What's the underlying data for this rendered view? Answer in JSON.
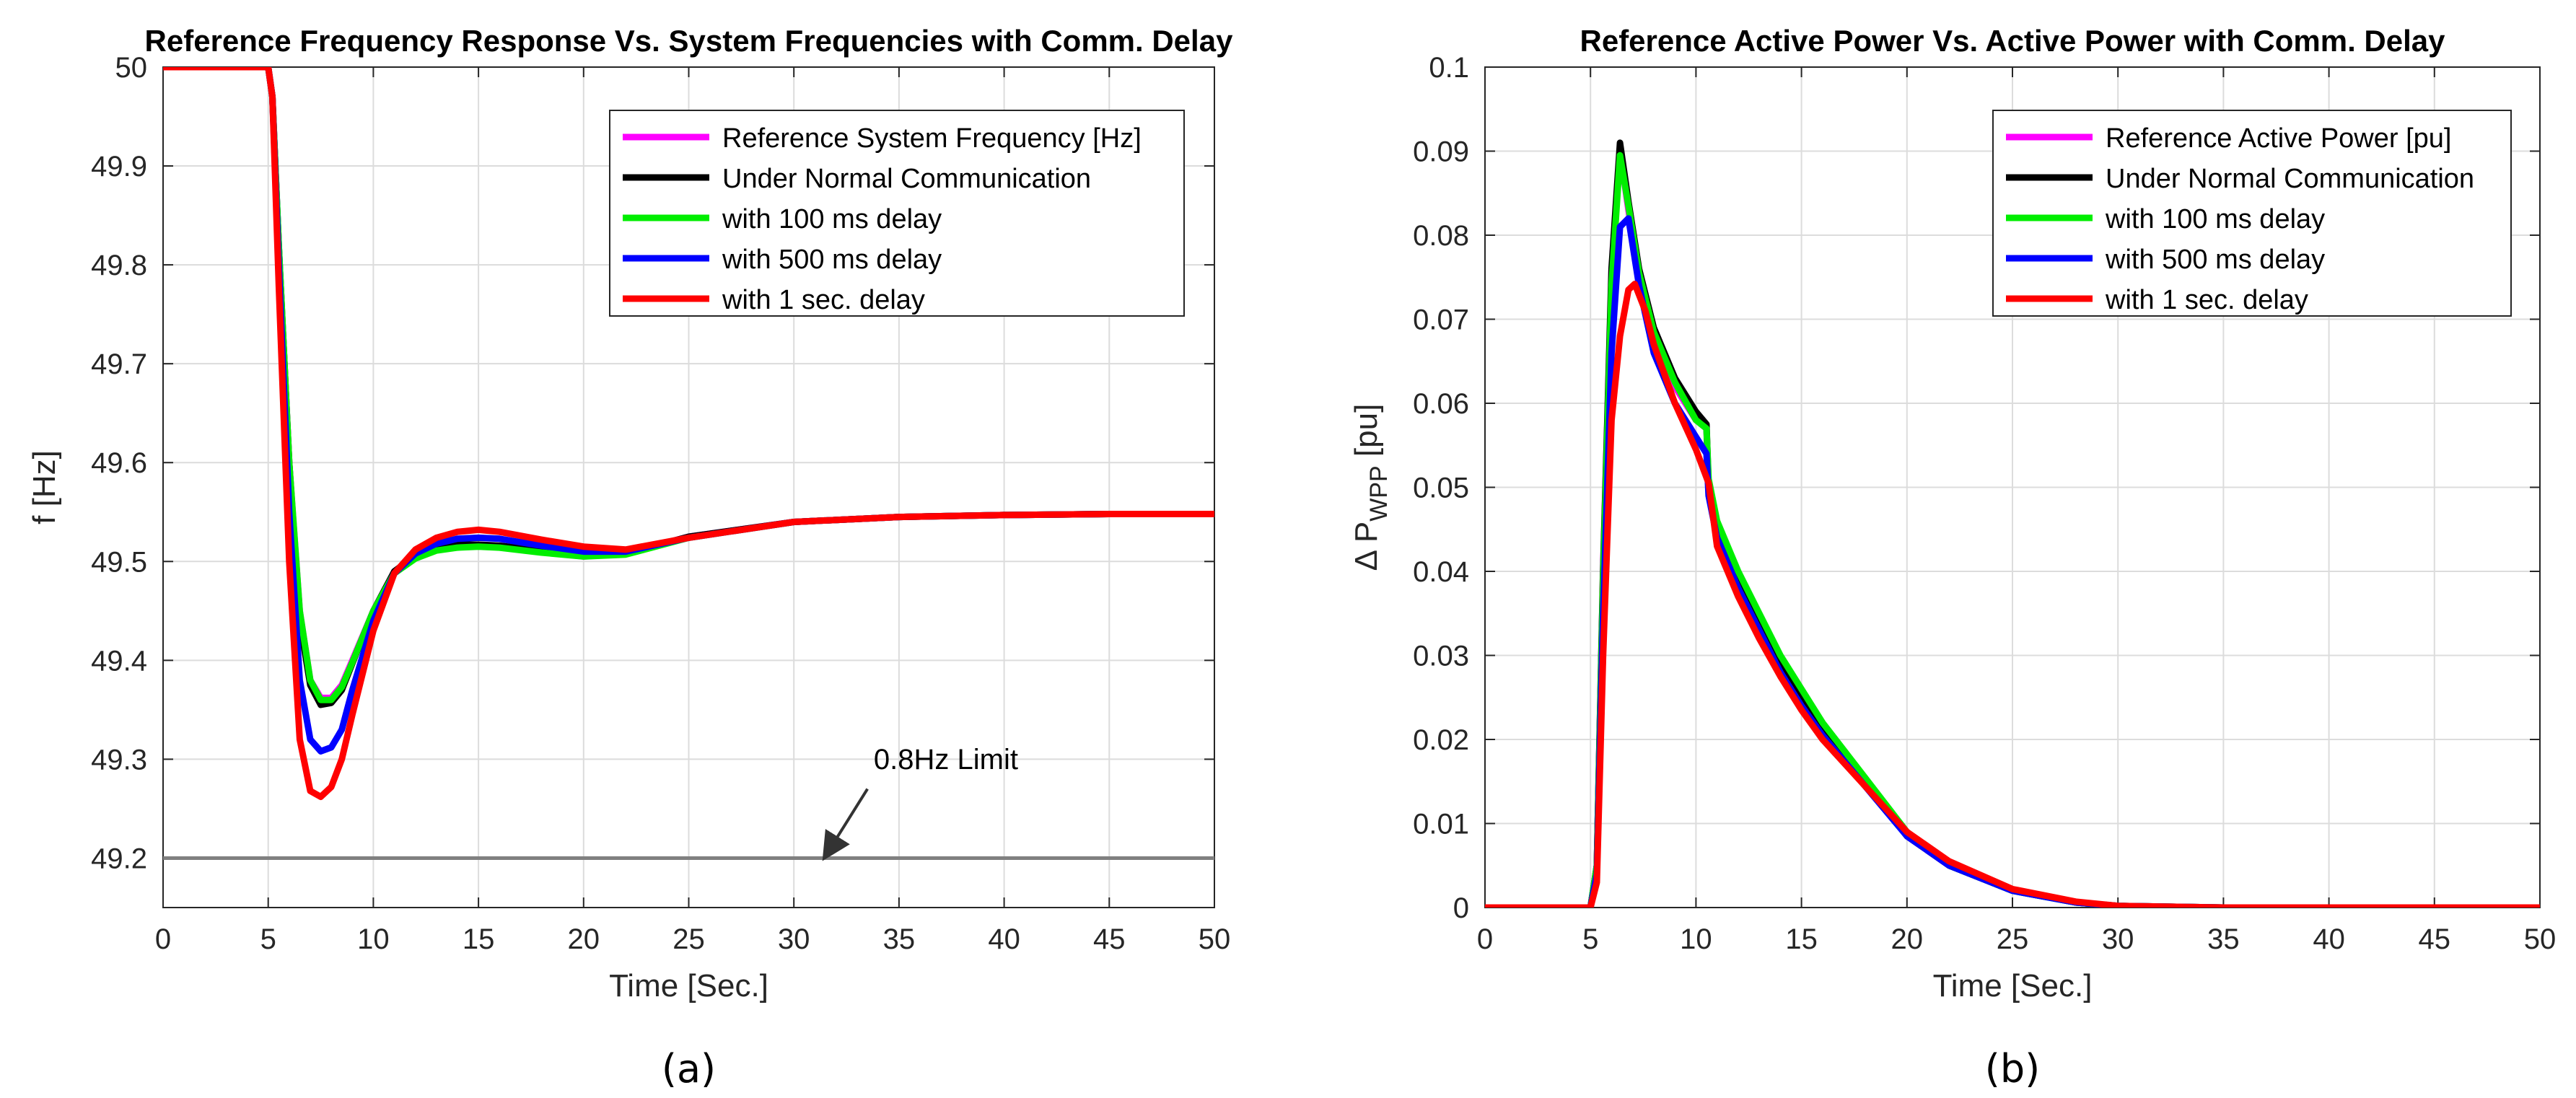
{
  "colors": {
    "reference": "#ff00ff",
    "normal": "#000000",
    "d100": "#00ee00",
    "d500": "#0000ff",
    "d1000": "#ff0000",
    "limit": "#808080",
    "grid": "#dcdcdc",
    "axis": "#262626"
  },
  "chart_data": [
    {
      "id": "a",
      "type": "line",
      "title": "Reference Frequency Response Vs. System Frequencies with Comm. Delay",
      "xlabel": "Time [Sec.]",
      "ylabel": "f [Hz]",
      "ylabel_sub": "",
      "caption": "(a)",
      "xlim": [
        0,
        50
      ],
      "ylim": [
        49.15,
        50
      ],
      "xticks": [
        0,
        5,
        10,
        15,
        20,
        25,
        30,
        35,
        40,
        45,
        50
      ],
      "xtick_labels": [
        "0",
        "5",
        "10",
        "15",
        "20",
        "25",
        "30",
        "35",
        "40",
        "45",
        "50"
      ],
      "yticks": [
        49.2,
        49.3,
        49.4,
        49.5,
        49.6,
        49.7,
        49.8,
        49.9,
        50
      ],
      "ytick_labels": [
        "49.2",
        "49.3",
        "49.4",
        "49.5",
        "49.6",
        "49.7",
        "49.8",
        "49.9",
        "50"
      ],
      "grid": true,
      "legend_position": "top-right",
      "series": [
        {
          "name": "Reference System Frequency [Hz]",
          "color_key": "reference",
          "x": [
            0,
            5,
            5.2,
            5.5,
            6,
            6.5,
            7,
            7.5,
            8,
            8.5,
            9,
            10,
            11,
            12,
            13,
            14,
            15,
            16,
            18,
            20,
            22,
            25,
            30,
            35,
            40,
            45,
            50
          ],
          "y": [
            50,
            50,
            49.97,
            49.82,
            49.6,
            49.45,
            49.38,
            49.362,
            49.362,
            49.375,
            49.4,
            49.45,
            49.49,
            49.505,
            49.513,
            49.516,
            49.516,
            49.515,
            49.51,
            49.505,
            49.508,
            49.525,
            49.54,
            49.545,
            49.547,
            49.548,
            49.548
          ]
        },
        {
          "name": "Under Normal Communication",
          "color_key": "normal",
          "x": [
            0,
            5,
            5.2,
            5.5,
            6,
            6.5,
            7,
            7.5,
            8,
            8.5,
            9,
            10,
            11,
            12,
            13,
            14,
            15,
            16,
            18,
            20,
            22,
            25,
            30,
            35,
            40,
            45,
            50
          ],
          "y": [
            50,
            50,
            49.97,
            49.82,
            49.6,
            49.44,
            49.375,
            49.355,
            49.357,
            49.37,
            49.397,
            49.45,
            49.49,
            49.506,
            49.514,
            49.517,
            49.517,
            49.516,
            49.511,
            49.506,
            49.508,
            49.525,
            49.54,
            49.545,
            49.547,
            49.548,
            49.548
          ]
        },
        {
          "name": "with 100 ms delay",
          "color_key": "d100",
          "x": [
            0,
            5,
            5.2,
            5.5,
            6,
            6.5,
            7,
            7.5,
            8,
            8.5,
            9,
            10,
            11,
            12,
            13,
            14,
            15,
            16,
            18,
            20,
            22,
            25,
            30,
            35,
            40,
            45,
            50
          ],
          "y": [
            50,
            50,
            49.97,
            49.82,
            49.6,
            49.45,
            49.38,
            49.36,
            49.36,
            49.373,
            49.398,
            49.45,
            49.488,
            49.503,
            49.511,
            49.514,
            49.515,
            49.514,
            49.509,
            49.505,
            49.507,
            49.524,
            49.54,
            49.545,
            49.547,
            49.548,
            49.548
          ]
        },
        {
          "name": "with 500 ms delay",
          "color_key": "d500",
          "x": [
            0,
            5,
            5.2,
            5.5,
            6,
            6.5,
            7,
            7.5,
            8,
            8.5,
            9,
            10,
            11,
            12,
            13,
            14,
            15,
            16,
            18,
            20,
            22,
            25,
            30,
            35,
            40,
            45,
            50
          ],
          "y": [
            50,
            50,
            49.97,
            49.8,
            49.55,
            49.38,
            49.32,
            49.308,
            49.312,
            49.33,
            49.37,
            49.44,
            49.488,
            49.508,
            49.518,
            49.523,
            49.524,
            49.523,
            49.516,
            49.51,
            49.51,
            49.524,
            49.54,
            49.545,
            49.547,
            49.548,
            49.548
          ]
        },
        {
          "name": "with 1 sec. delay",
          "color_key": "d1000",
          "x": [
            0,
            5,
            5.2,
            5.5,
            6,
            6.5,
            7,
            7.5,
            8,
            8.5,
            9,
            10,
            11,
            12,
            13,
            14,
            15,
            16,
            18,
            20,
            22,
            25,
            30,
            35,
            40,
            45,
            50
          ],
          "y": [
            50,
            50,
            49.97,
            49.78,
            49.5,
            49.32,
            49.268,
            49.262,
            49.272,
            49.3,
            49.345,
            49.43,
            49.488,
            49.512,
            49.524,
            49.53,
            49.532,
            49.53,
            49.522,
            49.515,
            49.512,
            49.524,
            49.54,
            49.545,
            49.547,
            49.548,
            49.548
          ]
        }
      ],
      "reference_line": {
        "y": 49.2,
        "color_key": "limit"
      },
      "annotation": {
        "text": "0.8Hz Limit",
        "text_x": 33.8,
        "text_y": 49.29,
        "arrow_from": [
          33.5,
          49.27
        ],
        "arrow_to": [
          31.5,
          49.202
        ]
      }
    },
    {
      "id": "b",
      "type": "line",
      "title": "Reference Active Power Vs. Active Power with Comm. Delay",
      "xlabel": "Time [Sec.]",
      "ylabel": "Δ P",
      "ylabel_sub": "WPP",
      "ylabel_tail": " [pu]",
      "caption": "(b)",
      "xlim": [
        0,
        50
      ],
      "ylim": [
        0,
        0.1
      ],
      "xticks": [
        0,
        5,
        10,
        15,
        20,
        25,
        30,
        35,
        40,
        45,
        50
      ],
      "xtick_labels": [
        "0",
        "5",
        "10",
        "15",
        "20",
        "25",
        "30",
        "35",
        "40",
        "45",
        "50"
      ],
      "yticks": [
        0,
        0.01,
        0.02,
        0.03,
        0.04,
        0.05,
        0.06,
        0.07,
        0.08,
        0.09,
        0.1
      ],
      "ytick_labels": [
        "0",
        "0.01",
        "0.02",
        "0.03",
        "0.04",
        "0.05",
        "0.06",
        "0.07",
        "0.08",
        "0.09",
        "0.1"
      ],
      "grid": true,
      "legend_position": "top-right",
      "series": [
        {
          "name": "Reference Active Power [pu]",
          "color_key": "reference",
          "x": [
            0,
            5,
            5.3,
            5.6,
            6.0,
            6.4,
            6.8,
            7.3,
            8,
            9,
            10,
            10.5,
            10.6,
            11,
            12,
            13,
            14,
            15,
            16,
            18,
            20,
            22,
            25,
            28,
            30,
            35,
            40,
            50
          ],
          "y": [
            0,
            0,
            0.005,
            0.04,
            0.075,
            0.09,
            0.083,
            0.075,
            0.068,
            0.062,
            0.058,
            0.057,
            0.05,
            0.045,
            0.039,
            0.034,
            0.029,
            0.025,
            0.021,
            0.015,
            0.0085,
            0.005,
            0.002,
            0.0006,
            0.0002,
            0,
            0,
            0
          ]
        },
        {
          "name": "Under Normal Communication",
          "color_key": "normal",
          "x": [
            0,
            5,
            5.3,
            5.6,
            6.0,
            6.4,
            6.8,
            7.3,
            8,
            9,
            10,
            10.5,
            10.6,
            11,
            12,
            13,
            14,
            15,
            16,
            18,
            20,
            22,
            25,
            28,
            30,
            35,
            40,
            50
          ],
          "y": [
            0,
            0,
            0.005,
            0.04,
            0.076,
            0.091,
            0.084,
            0.076,
            0.069,
            0.063,
            0.059,
            0.0575,
            0.05,
            0.045,
            0.039,
            0.034,
            0.029,
            0.025,
            0.021,
            0.015,
            0.0085,
            0.005,
            0.002,
            0.0006,
            0.0002,
            0,
            0,
            0
          ]
        },
        {
          "name": "with 100 ms delay",
          "color_key": "d100",
          "x": [
            0,
            5,
            5.3,
            5.6,
            6.0,
            6.4,
            6.8,
            7.3,
            8,
            9,
            10,
            10.5,
            10.6,
            11,
            12,
            13,
            14,
            15,
            16,
            18,
            20,
            22,
            25,
            28,
            30,
            35,
            40,
            50
          ],
          "y": [
            0,
            0,
            0.005,
            0.039,
            0.074,
            0.0895,
            0.0835,
            0.0755,
            0.0685,
            0.0625,
            0.058,
            0.057,
            0.051,
            0.046,
            0.04,
            0.035,
            0.03,
            0.026,
            0.022,
            0.0155,
            0.009,
            0.005,
            0.002,
            0.0006,
            0.0002,
            0,
            0,
            0
          ]
        },
        {
          "name": "with 500 ms delay",
          "color_key": "d500",
          "x": [
            0,
            5,
            5.3,
            5.6,
            6.0,
            6.4,
            6.8,
            7.3,
            8,
            9,
            10,
            10.5,
            10.6,
            11,
            12,
            13,
            14,
            15,
            16,
            18,
            20,
            22,
            25,
            28,
            30,
            35,
            40,
            50
          ],
          "y": [
            0,
            0,
            0.004,
            0.035,
            0.066,
            0.081,
            0.082,
            0.074,
            0.066,
            0.06,
            0.056,
            0.054,
            0.049,
            0.044,
            0.038,
            0.033,
            0.028,
            0.024,
            0.0205,
            0.0145,
            0.0085,
            0.005,
            0.002,
            0.0006,
            0.0002,
            0,
            0,
            0
          ]
        },
        {
          "name": "with 1 sec. delay",
          "color_key": "d1000",
          "x": [
            0,
            5,
            5.3,
            5.6,
            6.0,
            6.4,
            6.8,
            7.1,
            7.6,
            8,
            9,
            10,
            10.6,
            11,
            12,
            13,
            14,
            15,
            16,
            18,
            20,
            22,
            25,
            28,
            30,
            35,
            40,
            50
          ],
          "y": [
            0,
            0,
            0.003,
            0.03,
            0.058,
            0.068,
            0.0735,
            0.0742,
            0.071,
            0.067,
            0.06,
            0.0545,
            0.0505,
            0.043,
            0.037,
            0.032,
            0.0275,
            0.0235,
            0.02,
            0.0145,
            0.009,
            0.0055,
            0.0022,
            0.0007,
            0.0002,
            0,
            0,
            0
          ]
        }
      ]
    }
  ]
}
